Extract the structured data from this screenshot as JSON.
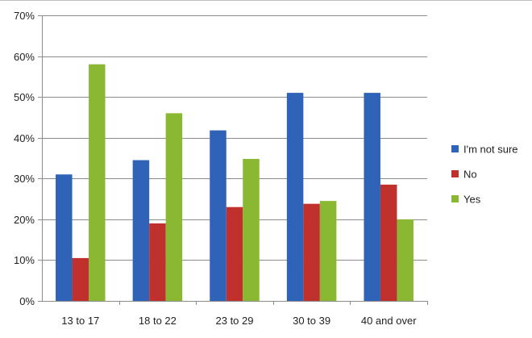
{
  "chart_data": {
    "type": "bar",
    "categories": [
      "13 to 17",
      "18 to 22",
      "23 to 29",
      "30 to 39",
      "40 and over"
    ],
    "series": [
      {
        "name": "I'm not sure",
        "color": "#2e63b8",
        "values": [
          31,
          34.5,
          41.8,
          51,
          51
        ]
      },
      {
        "name": "No",
        "color": "#c0302c",
        "values": [
          10.5,
          19,
          23,
          23.8,
          28.5
        ]
      },
      {
        "name": "Yes",
        "color": "#8ab832",
        "values": [
          58,
          46,
          34.8,
          24.5,
          20
        ]
      }
    ],
    "ylim": [
      0,
      70
    ],
    "yticks": [
      "0%",
      "10%",
      "20%",
      "30%",
      "40%",
      "50%",
      "60%",
      "70%"
    ],
    "ytick_values": [
      0,
      10,
      20,
      30,
      40,
      50,
      60,
      70
    ],
    "grid": true,
    "legend_position": "right"
  }
}
